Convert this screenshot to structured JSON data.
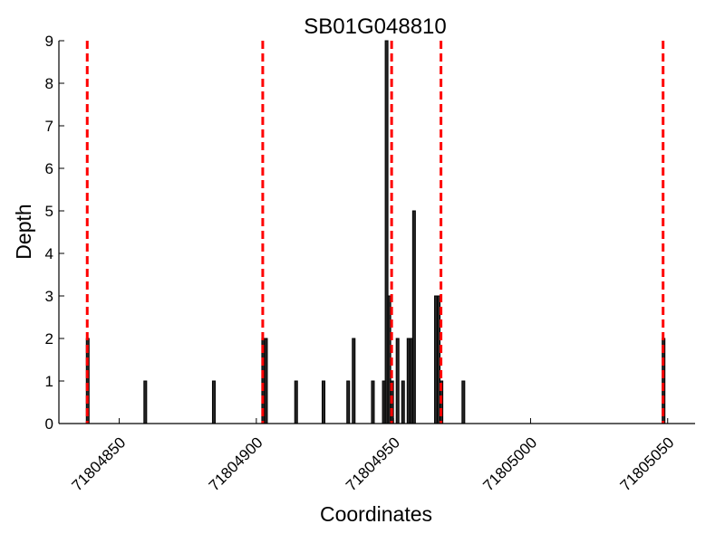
{
  "chart_data": {
    "type": "bar",
    "title": "SB01G048810",
    "xlabel": "Coordinates",
    "ylabel": "Depth",
    "xlim": [
      71804828,
      71805060
    ],
    "ylim": [
      0,
      9
    ],
    "xticks": [
      71804850,
      71804900,
      71804950,
      71805000,
      71805050
    ],
    "yticks": [
      0,
      1,
      2,
      3,
      4,
      5,
      6,
      7,
      8,
      9
    ],
    "bar_color": "#262626",
    "bar_edge_color": "#000000",
    "bars": [
      {
        "x": 71804838,
        "y": 2
      },
      {
        "x": 71804859,
        "y": 1
      },
      {
        "x": 71804884,
        "y": 1
      },
      {
        "x": 71804902,
        "y": 2
      },
      {
        "x": 71804903,
        "y": 2
      },
      {
        "x": 71804914,
        "y": 1
      },
      {
        "x": 71804924,
        "y": 1
      },
      {
        "x": 71804933,
        "y": 1
      },
      {
        "x": 71804935,
        "y": 2
      },
      {
        "x": 71804942,
        "y": 1
      },
      {
        "x": 71804946,
        "y": 1
      },
      {
        "x": 71804947,
        "y": 9
      },
      {
        "x": 71804948,
        "y": 3
      },
      {
        "x": 71804949,
        "y": 1
      },
      {
        "x": 71804951,
        "y": 2
      },
      {
        "x": 71804953,
        "y": 1
      },
      {
        "x": 71804955,
        "y": 2
      },
      {
        "x": 71804956,
        "y": 2
      },
      {
        "x": 71804957,
        "y": 5
      },
      {
        "x": 71804965,
        "y": 3
      },
      {
        "x": 71804966,
        "y": 3
      },
      {
        "x": 71804967,
        "y": 1
      },
      {
        "x": 71804975,
        "y": 1
      },
      {
        "x": 71805048,
        "y": 2
      }
    ],
    "bar_width": 1,
    "reference_lines": {
      "style": "dashed",
      "color": "#ff0000",
      "x": [
        71804838,
        71804902,
        71804949,
        71804967,
        71805048
      ]
    },
    "grid": false,
    "legend": "none"
  }
}
